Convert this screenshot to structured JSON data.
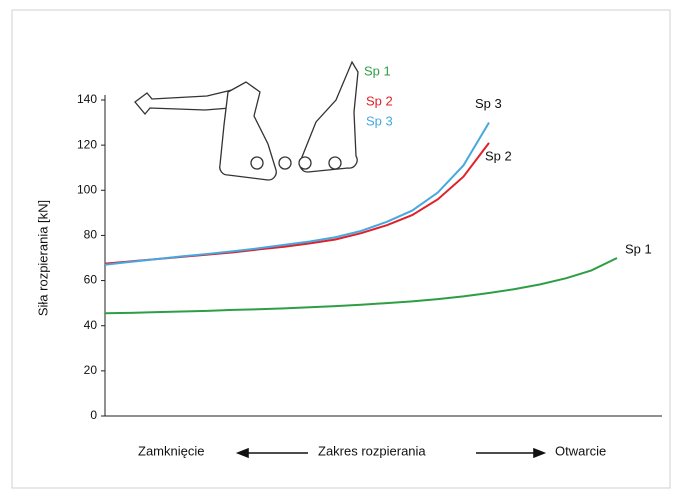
{
  "chart_data": {
    "type": "line",
    "y_label": "Siła rozpierania [kN]",
    "x_label_left": "Zamknięcie",
    "x_label_center": "Zakres rozpierania",
    "x_label_right": "Otwarcie",
    "categories": [
      null,
      null,
      null,
      null,
      null,
      null,
      null,
      null,
      null,
      null,
      null,
      null,
      null,
      null,
      null,
      null,
      null,
      null,
      null,
      null,
      null
    ],
    "series": [
      {
        "name": "Sp 1",
        "color": "#2e9e45",
        "values": [
          45.5,
          45.7,
          46,
          46.3,
          46.6,
          47,
          47.3,
          47.7,
          48.2,
          48.7,
          49.3,
          50,
          50.8,
          51.8,
          53,
          54.5,
          56.2,
          58.3,
          61,
          64.5,
          70
        ]
      },
      {
        "name": "Sp 2",
        "color": "#e0202a",
        "values": [
          67.5,
          68.5,
          69.5,
          70.5,
          71.5,
          72.5,
          73.8,
          75,
          76.5,
          78.2,
          81,
          84.5,
          89,
          96,
          106,
          121,
          null,
          null,
          null,
          null,
          null
        ]
      },
      {
        "name": "Sp 3",
        "color": "#45a8e0",
        "values": [
          67,
          68.3,
          69.5,
          70.7,
          71.8,
          73,
          74.3,
          75.8,
          77.3,
          79.2,
          82,
          86,
          91,
          99,
          111,
          130,
          null,
          null,
          null,
          null,
          null
        ]
      }
    ],
    "inset_labels": [
      "Sp 1",
      "Sp 2",
      "Sp 3"
    ],
    "ylim": [
      0,
      140
    ],
    "yticks": [
      0,
      20,
      40,
      60,
      80,
      100,
      120,
      140
    ]
  }
}
